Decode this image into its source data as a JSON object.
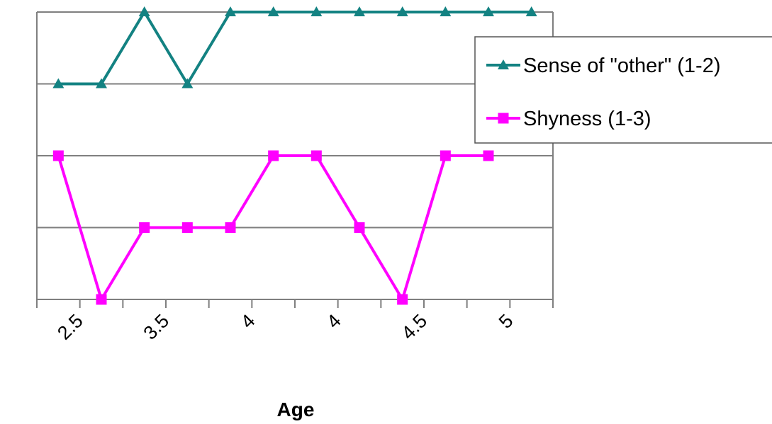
{
  "chart_data": {
    "type": "line",
    "title": "",
    "xlabel": "Age",
    "ylabel": "",
    "x_tick_labels": [
      "2.5",
      "3.5",
      "4",
      "4",
      "4.5",
      "5"
    ],
    "ylim": [
      0,
      4
    ],
    "grid": "horizontal",
    "legend_position": "right",
    "point_count": 12,
    "series": [
      {
        "name": "Sense of \"other\" (1-2)",
        "color": "#138282",
        "marker": "triangle",
        "values": [
          3,
          3,
          4,
          3,
          4,
          4,
          4,
          4,
          4,
          4,
          4,
          4
        ]
      },
      {
        "name": "Shyness (1-3)",
        "color": "#ff00ff",
        "marker": "square",
        "values": [
          2,
          0,
          1,
          1,
          1,
          2,
          2,
          1,
          0,
          2,
          2,
          null
        ]
      }
    ]
  }
}
